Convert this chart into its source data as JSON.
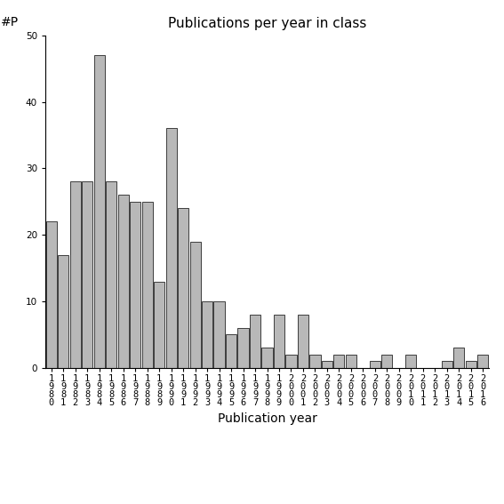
{
  "title": "Publications per year in class",
  "xlabel": "Publication year",
  "ylabel": "#P",
  "all_years": [
    1980,
    1981,
    1982,
    1983,
    1984,
    1985,
    1986,
    1987,
    1988,
    1989,
    1990,
    1991,
    1992,
    1993,
    1994,
    1995,
    1996,
    1997,
    1998,
    1999,
    2000,
    2001,
    2002,
    2003,
    2004,
    2005,
    2006,
    2007,
    2008,
    2009,
    2010,
    2011,
    2012,
    2013,
    2014,
    2015,
    2016
  ],
  "values": [
    22,
    17,
    28,
    28,
    47,
    28,
    26,
    25,
    25,
    13,
    36,
    24,
    19,
    10,
    10,
    5,
    6,
    8,
    3,
    8,
    2,
    8,
    2,
    1,
    2,
    2,
    0,
    1,
    2,
    0,
    2,
    0,
    0,
    1,
    3,
    1,
    2
  ],
  "bar_color": "#b8b8b8",
  "bar_edge_color": "#000000",
  "ylim": [
    0,
    50
  ],
  "yticks": [
    0,
    10,
    20,
    30,
    40,
    50
  ],
  "background_color": "#ffffff",
  "title_fontsize": 11,
  "axis_label_fontsize": 10,
  "tick_fontsize": 7.5
}
